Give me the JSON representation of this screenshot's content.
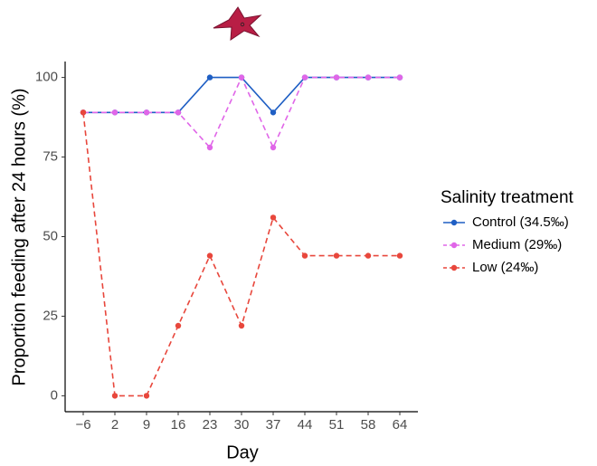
{
  "chart_data": {
    "type": "line",
    "x_label": "Day",
    "y_label": "Proportion  feeding after 24 hours (%)",
    "legend_title": "Salinity treatment",
    "legend_position": "right",
    "categories": [
      "−6",
      "2",
      "9",
      "16",
      "23",
      "30",
      "37",
      "44",
      "51",
      "58",
      "64"
    ],
    "series": [
      {
        "name": "Control (34.5‰)",
        "color": "#1f5fc4",
        "linestyle": "solid",
        "values": [
          89,
          89,
          89,
          89,
          100,
          100,
          89,
          100,
          100,
          100,
          100
        ]
      },
      {
        "name": "Medium (29‰)",
        "color": "#e066e8",
        "linestyle": "dashed",
        "values": [
          89,
          89,
          89,
          89,
          78,
          100,
          78,
          100,
          100,
          100,
          100
        ]
      },
      {
        "name": "Low (24‰)",
        "color": "#e8473c",
        "linestyle": "dashed",
        "values": [
          89,
          0,
          0,
          22,
          44,
          22,
          56,
          44,
          44,
          44,
          44
        ]
      }
    ],
    "ylim": [
      -5,
      105
    ],
    "yticks": [
      0,
      25,
      50,
      75,
      100
    ],
    "grid": false
  }
}
